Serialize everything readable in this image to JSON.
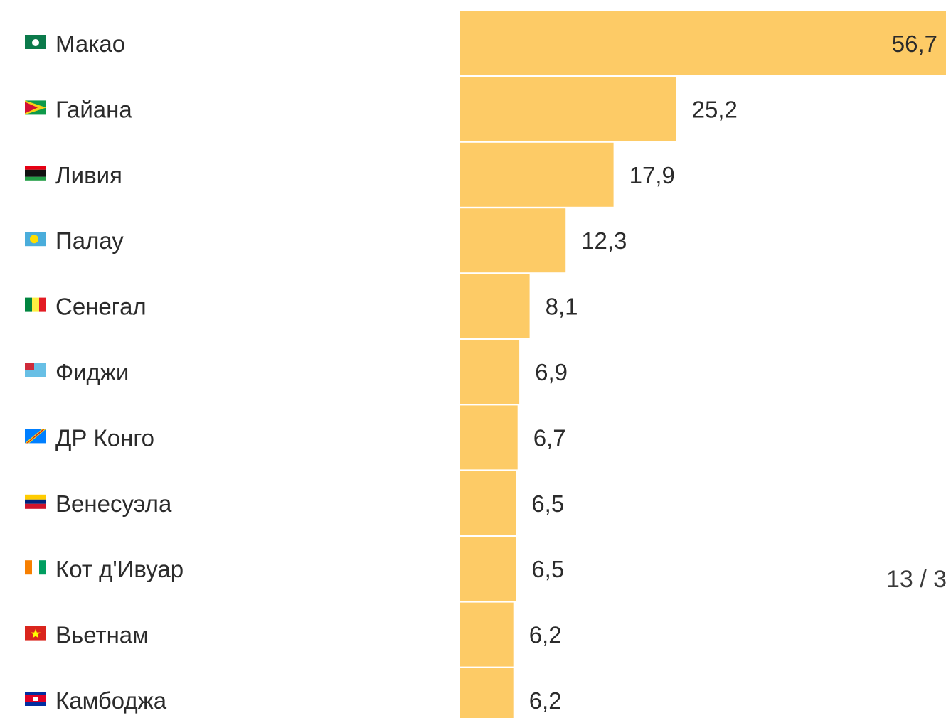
{
  "chart_data": {
    "type": "bar",
    "orientation": "horizontal",
    "categories": [
      "Макао",
      "Гайана",
      "Ливия",
      "Палау",
      "Сенегал",
      "Фиджи",
      "ДР Конго",
      "Венесуэла",
      "Кот д'Ивуар",
      "Вьетнам",
      "Камбоджа"
    ],
    "values": [
      56.7,
      25.2,
      17.9,
      12.3,
      8.1,
      6.9,
      6.7,
      6.5,
      6.5,
      6.2,
      6.2
    ],
    "value_labels": [
      "56,7",
      "25,2",
      "17,9",
      "12,3",
      "8,1",
      "6,9",
      "6,7",
      "6,5",
      "6,5",
      "6,2",
      "6,2"
    ],
    "flag_icons": [
      "macau-flag-icon",
      "guyana-flag-icon",
      "libya-flag-icon",
      "palau-flag-icon",
      "senegal-flag-icon",
      "fiji-flag-icon",
      "dr-congo-flag-icon",
      "venezuela-flag-icon",
      "ivory-coast-flag-icon",
      "vietnam-flag-icon",
      "cambodia-flag-icon"
    ],
    "bar_color": "#fdcb66",
    "xlim": [
      0,
      56.7
    ],
    "grid": false,
    "legend": "none"
  },
  "page_indicator": "13 / 3"
}
